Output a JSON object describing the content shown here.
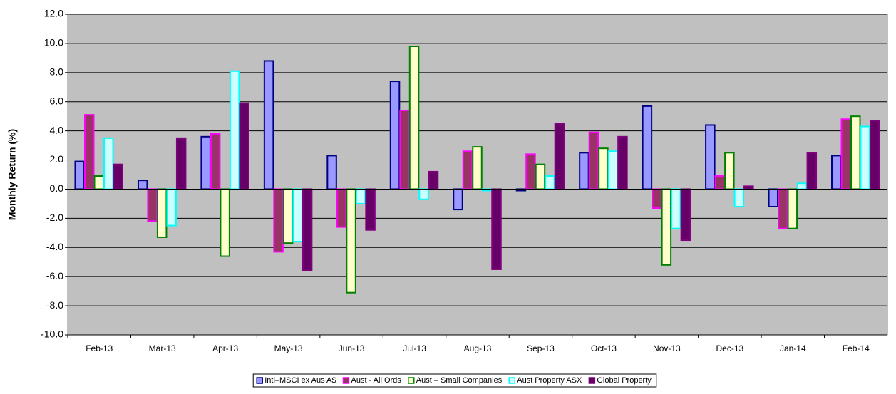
{
  "chart_data": {
    "type": "bar",
    "ylabel": "Monthly Return (%)",
    "categories": [
      "Feb-13",
      "Mar-13",
      "Apr-13",
      "May-13",
      "Jun-13",
      "Jul-13",
      "Aug-13",
      "Sep-13",
      "Oct-13",
      "Nov-13",
      "Dec-13",
      "Jan-14",
      "Feb-14"
    ],
    "series": [
      {
        "name": "Intl–MSCI ex Aus A$",
        "color": "#9999ff",
        "edgecolor": "#000080",
        "values": [
          1.9,
          0.6,
          3.6,
          8.8,
          2.3,
          7.4,
          -1.4,
          -0.1,
          2.5,
          5.7,
          4.4,
          -1.2,
          2.3
        ]
      },
      {
        "name": "Aust - All Ords",
        "color": "#993366",
        "edgecolor": "#ff00ff",
        "values": [
          5.1,
          -2.2,
          3.8,
          -4.3,
          -2.6,
          5.4,
          2.6,
          2.4,
          3.9,
          -1.3,
          0.9,
          -2.7,
          4.8
        ]
      },
      {
        "name": "Aust – Small Companies",
        "color": "#ffffcc",
        "edgecolor": "#008000",
        "values": [
          0.9,
          -3.3,
          -4.6,
          -3.7,
          -7.1,
          9.8,
          2.9,
          1.7,
          2.8,
          -5.2,
          2.5,
          -2.7,
          5.0
        ]
      },
      {
        "name": "Aust Property ASX",
        "color": "#ccffff",
        "edgecolor": "#00ffff",
        "values": [
          3.5,
          -2.5,
          8.1,
          -3.6,
          -1.0,
          -0.7,
          -0.1,
          0.9,
          2.6,
          -2.7,
          -1.2,
          0.4,
          4.3
        ]
      },
      {
        "name": "Global Property",
        "color": "#660066",
        "edgecolor": "#800080",
        "values": [
          1.7,
          3.5,
          5.9,
          -5.6,
          -2.8,
          1.2,
          -5.5,
          4.5,
          3.6,
          -3.5,
          0.2,
          2.5,
          4.7
        ]
      }
    ],
    "ylim": [
      -10,
      12
    ],
    "yticks": [
      {
        "value": -10,
        "label": "-10.0"
      },
      {
        "value": -8,
        "label": "-8.0"
      },
      {
        "value": -6,
        "label": "-6.0"
      },
      {
        "value": -4,
        "label": "-4.0"
      },
      {
        "value": -2,
        "label": "-2.0"
      },
      {
        "value": 0,
        "label": "0.0"
      },
      {
        "value": 2,
        "label": "2.0"
      },
      {
        "value": 4,
        "label": "4.0"
      },
      {
        "value": 6,
        "label": "6.0"
      },
      {
        "value": 8,
        "label": "8.0"
      },
      {
        "value": 10,
        "label": "10.0"
      },
      {
        "value": 12,
        "label": "12.0"
      }
    ],
    "grid": true,
    "plot_background": "#c0c0c0",
    "legend": "bottom"
  }
}
